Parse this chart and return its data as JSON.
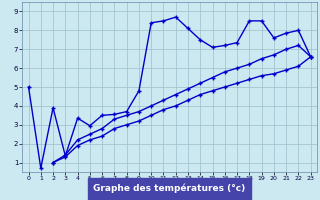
{
  "xlabel": "Graphe des températures (°c)",
  "bg_color": "#cce8f0",
  "line_color": "#0000cc",
  "grid_color": "#9bbfcc",
  "xlabel_bg": "#4444aa",
  "xlabel_fg": "#ffffff",
  "xlim": [
    -0.5,
    23.5
  ],
  "ylim": [
    0.5,
    9.5
  ],
  "xticks": [
    0,
    1,
    2,
    3,
    4,
    5,
    6,
    7,
    8,
    9,
    10,
    11,
    12,
    13,
    14,
    15,
    16,
    17,
    18,
    19,
    20,
    21,
    22,
    23
  ],
  "yticks": [
    1,
    2,
    3,
    4,
    5,
    6,
    7,
    8,
    9
  ],
  "line1_x": [
    0,
    1,
    2,
    3,
    4,
    5,
    6,
    7,
    8,
    9,
    10,
    11,
    12,
    13,
    14,
    15,
    16,
    17,
    18,
    19,
    20,
    21,
    22,
    23
  ],
  "line1_y": [
    5.0,
    0.7,
    3.9,
    1.35,
    3.35,
    2.95,
    3.5,
    3.55,
    3.7,
    4.8,
    8.4,
    8.5,
    8.7,
    8.1,
    7.5,
    7.1,
    7.2,
    7.35,
    8.5,
    8.5,
    7.6,
    7.85,
    8.0,
    6.6
  ],
  "line2_x": [
    2,
    3,
    4,
    5,
    6,
    7,
    8,
    9,
    10,
    11,
    12,
    13,
    14,
    15,
    16,
    17,
    18,
    19,
    20,
    21,
    22,
    23
  ],
  "line2_y": [
    1.0,
    1.4,
    2.2,
    2.5,
    2.8,
    3.3,
    3.5,
    3.7,
    4.0,
    4.3,
    4.6,
    4.9,
    5.2,
    5.5,
    5.8,
    6.0,
    6.2,
    6.5,
    6.7,
    7.0,
    7.2,
    6.6
  ],
  "line3_x": [
    2,
    3,
    4,
    5,
    6,
    7,
    8,
    9,
    10,
    11,
    12,
    13,
    14,
    15,
    16,
    17,
    18,
    19,
    20,
    21,
    22,
    23
  ],
  "line3_y": [
    1.0,
    1.3,
    1.9,
    2.2,
    2.4,
    2.8,
    3.0,
    3.2,
    3.5,
    3.8,
    4.0,
    4.3,
    4.6,
    4.8,
    5.0,
    5.2,
    5.4,
    5.6,
    5.7,
    5.9,
    6.1,
    6.6
  ]
}
